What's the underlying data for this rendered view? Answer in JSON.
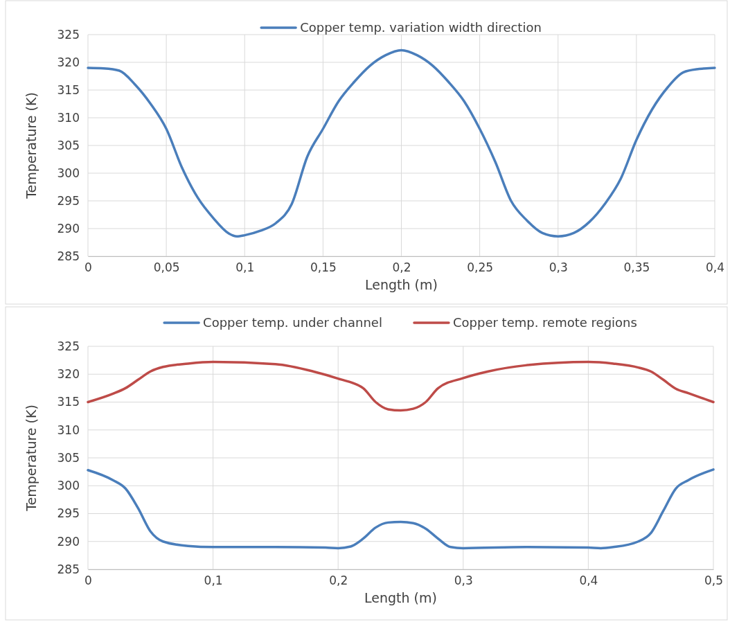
{
  "chart_data": [
    {
      "type": "line",
      "xlabel": "Length (m)",
      "ylabel": "Temperature (K)",
      "grid": true,
      "legend": "top",
      "marker": "none",
      "line_style": "solid",
      "xlim": [
        0,
        0.4
      ],
      "ylim": [
        285,
        325
      ],
      "xticks": [
        0,
        {
          "value": 0.05,
          "label": "0,05"
        },
        {
          "value": 0.1,
          "label": "0,1"
        },
        {
          "value": 0.15,
          "label": "0,15"
        },
        {
          "value": 0.2,
          "label": "0,2"
        },
        {
          "value": 0.25,
          "label": "0,25"
        },
        {
          "value": 0.3,
          "label": "0,3"
        },
        {
          "value": 0.35,
          "label": "0,35"
        },
        {
          "value": 0.4,
          "label": "0,4"
        }
      ],
      "yticks": [
        285,
        290,
        295,
        300,
        305,
        310,
        315,
        320,
        325
      ],
      "series": [
        {
          "name": "Copper temp. variation width direction",
          "color": "#4a7ebb",
          "x": [
            0,
            0.01,
            0.02,
            0.03,
            0.04,
            0.05,
            0.06,
            0.07,
            0.08,
            0.09,
            0.095,
            0.1,
            0.11,
            0.12,
            0.13,
            0.14,
            0.15,
            0.16,
            0.17,
            0.18,
            0.19,
            0.2,
            0.21,
            0.22,
            0.23,
            0.24,
            0.25,
            0.26,
            0.27,
            0.28,
            0.29,
            0.3,
            0.31,
            0.32,
            0.33,
            0.34,
            0.35,
            0.36,
            0.37,
            0.38,
            0.39,
            0.4
          ],
          "values": [
            319,
            318.9,
            318.5,
            316,
            312.5,
            308,
            301,
            295.6,
            291.9,
            289.1,
            288.6,
            288.8,
            289.6,
            291,
            294.4,
            303,
            308,
            313,
            316.5,
            319.4,
            321.3,
            322.2,
            321.3,
            319.4,
            316.5,
            313,
            308,
            302,
            295,
            291.5,
            289.2,
            288.6,
            289.2,
            291.2,
            294.5,
            299,
            306,
            311.5,
            315.5,
            318.2,
            318.8,
            319
          ]
        }
      ]
    },
    {
      "type": "line",
      "xlabel": "Length (m)",
      "ylabel": "Temperature (K)",
      "grid": true,
      "legend": "top",
      "marker": "none",
      "line_style": "solid",
      "xlim": [
        0,
        0.5
      ],
      "ylim": [
        285,
        325
      ],
      "xticks": [
        0,
        {
          "value": 0.1,
          "label": "0,1"
        },
        {
          "value": 0.2,
          "label": "0,2"
        },
        {
          "value": 0.3,
          "label": "0,3"
        },
        {
          "value": 0.4,
          "label": "0,4"
        },
        {
          "value": 0.5,
          "label": "0,5"
        }
      ],
      "yticks": [
        285,
        290,
        295,
        300,
        305,
        310,
        315,
        320,
        325
      ],
      "series": [
        {
          "name": "Copper temp. under channel",
          "color": "#4a7ebb",
          "x": [
            0,
            0.02,
            0.03,
            0.04,
            0.05,
            0.06,
            0.08,
            0.1,
            0.15,
            0.19,
            0.2,
            0.21,
            0.22,
            0.23,
            0.24,
            0.25,
            0.26,
            0.27,
            0.28,
            0.29,
            0.3,
            0.35,
            0.4,
            0.41,
            0.42,
            0.44,
            0.45,
            0.46,
            0.47,
            0.48,
            0.5
          ],
          "values": [
            302.8,
            301,
            299.5,
            296,
            291.8,
            290,
            289.2,
            289,
            289,
            288.9,
            288.8,
            289.1,
            290.5,
            292.5,
            293.4,
            293.5,
            293.3,
            292.3,
            290.5,
            289,
            288.8,
            289,
            288.9,
            288.8,
            289,
            290,
            291.5,
            295.5,
            299.5,
            301,
            302.9
          ]
        },
        {
          "name": "Copper temp. remote regions",
          "color": "#be4b48",
          "x": [
            0,
            0.02,
            0.03,
            0.04,
            0.05,
            0.06,
            0.08,
            0.1,
            0.15,
            0.18,
            0.2,
            0.22,
            0.23,
            0.24,
            0.25,
            0.26,
            0.27,
            0.28,
            0.3,
            0.32,
            0.35,
            0.4,
            0.42,
            0.44,
            0.45,
            0.46,
            0.47,
            0.48,
            0.5
          ],
          "values": [
            315,
            316.5,
            317.5,
            319,
            320.5,
            321.3,
            321.9,
            322.2,
            321.8,
            320.5,
            319.2,
            317.5,
            315,
            313.7,
            313.5,
            313.8,
            315,
            317.5,
            319.3,
            320.5,
            321.6,
            322.2,
            321.9,
            321.2,
            320.5,
            319,
            317.4,
            316.6,
            315
          ]
        }
      ]
    }
  ]
}
